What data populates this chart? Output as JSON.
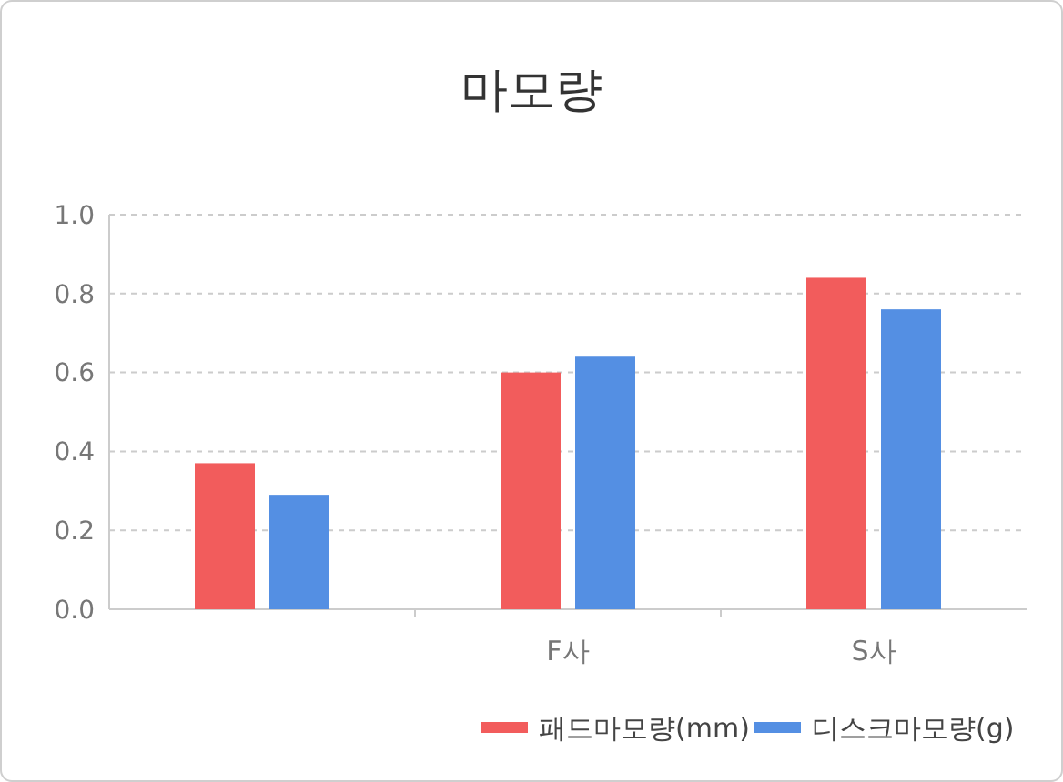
{
  "chart_data": {
    "type": "bar",
    "title": "마모량",
    "categories": [
      null,
      "F사",
      "S사"
    ],
    "series": [
      {
        "name": "패드마모량(mm)",
        "color": "#f25c5c",
        "values": [
          0.37,
          0.6,
          0.84
        ]
      },
      {
        "name": "디스크마모량(g)",
        "color": "#548fe3",
        "values": [
          0.29,
          0.64,
          0.76
        ]
      }
    ],
    "ylim": [
      0,
      1
    ],
    "yticks": [
      {
        "value": 0,
        "label": "0.0"
      },
      {
        "value": 0.2,
        "label": "0.2"
      },
      {
        "value": 0.4,
        "label": "0.4"
      },
      {
        "value": 0.6,
        "label": "0.6"
      },
      {
        "value": 0.8,
        "label": "0.8"
      },
      {
        "value": 1,
        "label": "1.0"
      }
    ],
    "grid": "y",
    "legend": "bottom right"
  }
}
